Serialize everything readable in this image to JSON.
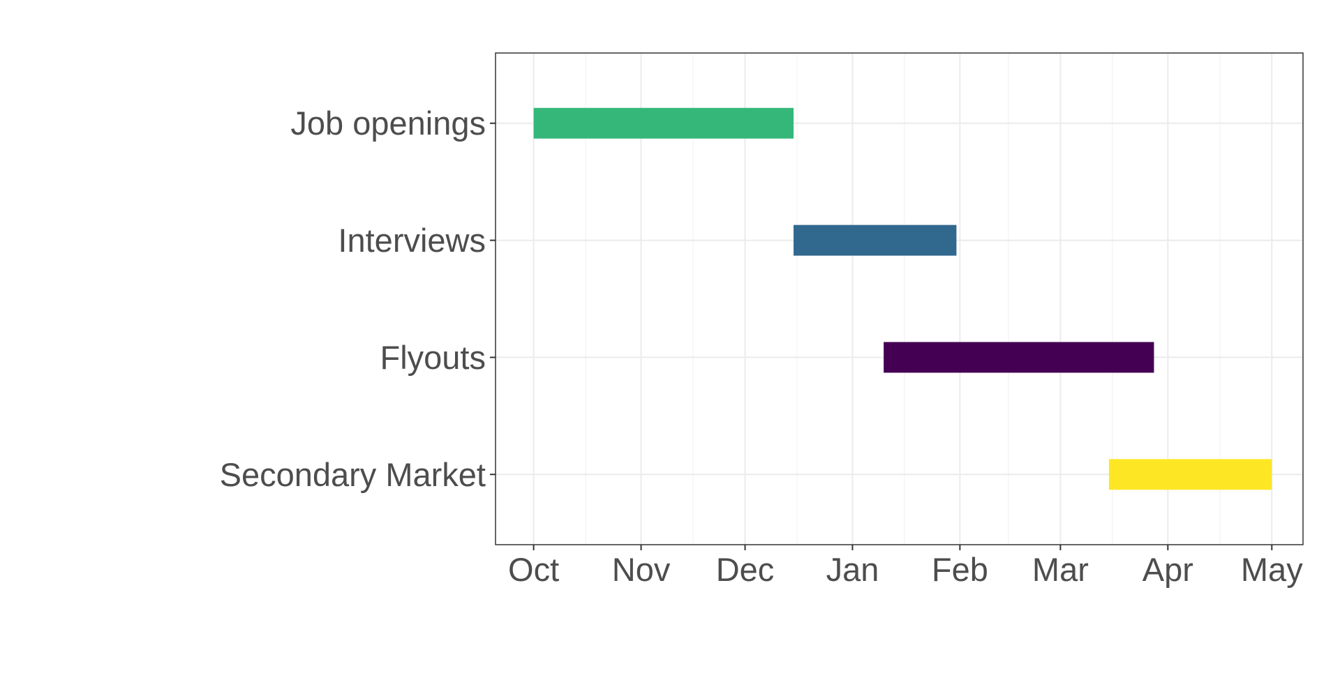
{
  "chart_data": {
    "type": "bar",
    "orientation": "horizontal",
    "title": "",
    "xlabel": "",
    "ylabel": "",
    "x_axis_type": "date",
    "xlim": [
      "2019-09-20",
      "2020-05-10"
    ],
    "x_ticks": [
      {
        "date": "2019-10-01",
        "label": "Oct"
      },
      {
        "date": "2019-11-01",
        "label": "Nov"
      },
      {
        "date": "2019-12-01",
        "label": "Dec"
      },
      {
        "date": "2020-01-01",
        "label": "Jan"
      },
      {
        "date": "2020-02-01",
        "label": "Feb"
      },
      {
        "date": "2020-03-01",
        "label": "Mar"
      },
      {
        "date": "2020-04-01",
        "label": "Apr"
      },
      {
        "date": "2020-05-01",
        "label": "May"
      }
    ],
    "x_minor_gridlines": [
      "2019-10-16",
      "2019-11-16",
      "2019-12-16",
      "2020-01-16",
      "2020-02-15",
      "2020-03-16",
      "2020-04-16"
    ],
    "grid": true,
    "legend": "none",
    "categories": [
      "Job openings",
      "Interviews",
      "Flyouts",
      "Secondary Market"
    ],
    "tasks": [
      {
        "category": "Job openings",
        "start": "2019-10-01",
        "end": "2019-12-15",
        "color": "#35B779"
      },
      {
        "category": "Interviews",
        "start": "2019-12-15",
        "end": "2020-01-31",
        "color": "#31688E"
      },
      {
        "category": "Flyouts",
        "start": "2020-01-10",
        "end": "2020-03-28",
        "color": "#440154"
      },
      {
        "category": "Secondary Market",
        "start": "2020-03-15",
        "end": "2020-05-01",
        "color": "#FDE725"
      }
    ],
    "colors": {
      "background": "#FFFFFF",
      "panel_border": "#333333",
      "grid_major": "#EBEBEB",
      "grid_minor": "#F5F5F5",
      "tick_text": "#4D4D4D",
      "tick_mark": "#333333"
    }
  }
}
